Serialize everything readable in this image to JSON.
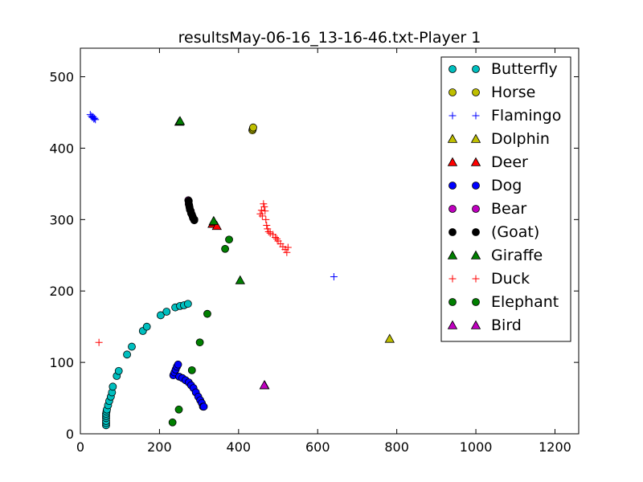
{
  "chart_data": {
    "type": "scatter",
    "title": "resultsMay-06-16_13-16-46.txt-Player 1",
    "xlabel": "",
    "ylabel": "",
    "xlim": [
      0,
      1260
    ],
    "ylim": [
      0,
      540
    ],
    "xticks": [
      0,
      200,
      400,
      600,
      800,
      1000,
      1200
    ],
    "yticks": [
      0,
      100,
      200,
      300,
      400,
      500
    ],
    "grid": false,
    "legend_position": "top-right",
    "series": [
      {
        "name": "Butterfly",
        "marker": "circle",
        "color": "#00bfbf",
        "points": [
          [
            65,
            12
          ],
          [
            65,
            15
          ],
          [
            65,
            18
          ],
          [
            65,
            22
          ],
          [
            65,
            25
          ],
          [
            65,
            28
          ],
          [
            66,
            31
          ],
          [
            67,
            34
          ],
          [
            70,
            40
          ],
          [
            73,
            46
          ],
          [
            77,
            52
          ],
          [
            80,
            58
          ],
          [
            82,
            66
          ],
          [
            92,
            81
          ],
          [
            97,
            88
          ],
          [
            118,
            111
          ],
          [
            130,
            122
          ],
          [
            158,
            144
          ],
          [
            168,
            150
          ],
          [
            203,
            166
          ],
          [
            218,
            171
          ],
          [
            240,
            177
          ],
          [
            252,
            179
          ],
          [
            262,
            180
          ],
          [
            272,
            182
          ]
        ]
      },
      {
        "name": "Horse",
        "marker": "circle",
        "color": "#bfbf00",
        "points": [
          [
            435,
            425
          ],
          [
            436,
            427
          ],
          [
            437,
            429
          ],
          [
            288,
            300
          ]
        ]
      },
      {
        "name": "Flamingo",
        "marker": "plus",
        "color": "#0000ff",
        "points": [
          [
            25,
            447
          ],
          [
            28,
            445
          ],
          [
            30,
            443
          ],
          [
            32,
            444
          ],
          [
            34,
            441
          ],
          [
            36,
            442
          ],
          [
            38,
            440
          ],
          [
            641,
            220
          ]
        ]
      },
      {
        "name": "Dolphin",
        "marker": "triangle-up",
        "color": "#bfbf00",
        "points": [
          [
            250,
            437
          ],
          [
            782,
            133
          ],
          [
            466,
            68
          ]
        ]
      },
      {
        "name": "Deer",
        "marker": "triangle-up",
        "color": "#ff0000",
        "points": [
          [
            334,
            294
          ],
          [
            338,
            297
          ],
          [
            345,
            291
          ]
        ]
      },
      {
        "name": "Dog",
        "marker": "circle",
        "color": "#0000ff",
        "points": [
          [
            235,
            82
          ],
          [
            238,
            86
          ],
          [
            241,
            90
          ],
          [
            244,
            94
          ],
          [
            247,
            97
          ],
          [
            250,
            80
          ],
          [
            258,
            78
          ],
          [
            266,
            75
          ],
          [
            274,
            72
          ],
          [
            280,
            68
          ],
          [
            286,
            64
          ],
          [
            292,
            58
          ],
          [
            298,
            52
          ],
          [
            303,
            47
          ],
          [
            307,
            43
          ],
          [
            310,
            38
          ],
          [
            312,
            38
          ]
        ]
      },
      {
        "name": "Bear",
        "marker": "circle",
        "color": "#bf00bf",
        "points": [
          [
            273,
            327
          ],
          [
            274,
            322
          ],
          [
            276,
            317
          ],
          [
            279,
            312
          ],
          [
            282,
            307
          ],
          [
            285,
            302
          ],
          [
            288,
            300
          ]
        ]
      },
      {
        "name": "(Goat)",
        "marker": "circle",
        "color": "#000000",
        "points": [
          [
            274,
            326
          ],
          [
            275,
            320
          ],
          [
            277,
            314
          ],
          [
            280,
            309
          ],
          [
            284,
            304
          ],
          [
            288,
            299
          ]
        ]
      },
      {
        "name": "Giraffe",
        "marker": "triangle-up",
        "color": "#007f00",
        "points": [
          [
            252,
            438
          ],
          [
            404,
            215
          ],
          [
            337,
            298
          ]
        ]
      },
      {
        "name": "Duck",
        "marker": "plus",
        "color": "#ff0000",
        "points": [
          [
            47,
            128
          ],
          [
            455,
            308
          ],
          [
            458,
            313
          ],
          [
            460,
            305
          ],
          [
            463,
            322
          ],
          [
            465,
            318
          ],
          [
            467,
            312
          ],
          [
            469,
            300
          ],
          [
            471,
            292
          ],
          [
            473,
            287
          ],
          [
            476,
            283
          ],
          [
            480,
            281
          ],
          [
            487,
            279
          ],
          [
            493,
            275
          ],
          [
            497,
            273
          ],
          [
            500,
            270
          ],
          [
            506,
            266
          ],
          [
            512,
            262
          ],
          [
            518,
            258
          ],
          [
            522,
            254
          ],
          [
            525,
            261
          ]
        ]
      },
      {
        "name": "Elephant",
        "marker": "circle",
        "color": "#007f00",
        "points": [
          [
            233,
            16
          ],
          [
            249,
            34
          ],
          [
            282,
            89
          ],
          [
            302,
            128
          ],
          [
            321,
            168
          ],
          [
            366,
            259
          ],
          [
            376,
            272
          ]
        ]
      },
      {
        "name": "Bird",
        "marker": "triangle-up",
        "color": "#bf00bf",
        "points": [
          [
            465,
            68
          ]
        ]
      }
    ]
  }
}
